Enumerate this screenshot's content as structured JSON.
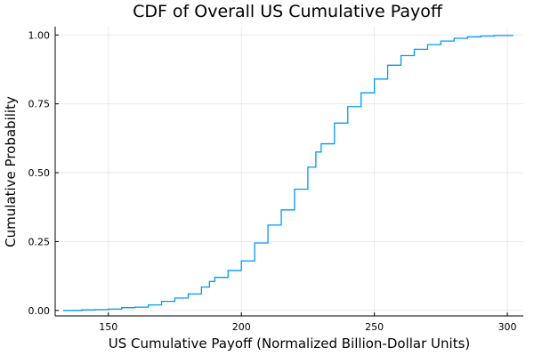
{
  "chart_data": {
    "type": "line",
    "title": "CDF of Overall US Cumulative Payoff",
    "xlabel": "US Cumulative Payoff (Normalized Billion-Dollar Units)",
    "ylabel": "Cumulative Probability",
    "xlim": [
      130,
      306
    ],
    "ylim": [
      -0.02,
      1.03
    ],
    "xticks": [
      150,
      200,
      250,
      300
    ],
    "xtick_labels": [
      "150",
      "200",
      "250",
      "300"
    ],
    "yticks": [
      0,
      0.25,
      0.5,
      0.75,
      1.0
    ],
    "ytick_labels": [
      "0.00",
      "0.25",
      "0.50",
      "0.75",
      "1.00"
    ],
    "grid": true,
    "legend": "none",
    "color": "#009AF9",
    "series": [
      {
        "x": [
          133,
          140,
          145,
          150,
          155,
          160,
          165,
          170,
          175,
          180,
          185,
          188,
          190,
          195,
          200,
          205,
          210,
          215,
          220,
          225,
          228,
          230,
          235,
          240,
          245,
          250,
          255,
          260,
          265,
          270,
          275,
          280,
          285,
          290,
          295,
          302
        ],
        "y": [
          0.0,
          0.002,
          0.003,
          0.005,
          0.01,
          0.012,
          0.02,
          0.033,
          0.045,
          0.06,
          0.085,
          0.105,
          0.12,
          0.145,
          0.18,
          0.245,
          0.31,
          0.365,
          0.44,
          0.52,
          0.575,
          0.605,
          0.68,
          0.74,
          0.79,
          0.84,
          0.89,
          0.925,
          0.948,
          0.965,
          0.978,
          0.988,
          0.993,
          0.996,
          0.998,
          1.0
        ]
      }
    ]
  }
}
